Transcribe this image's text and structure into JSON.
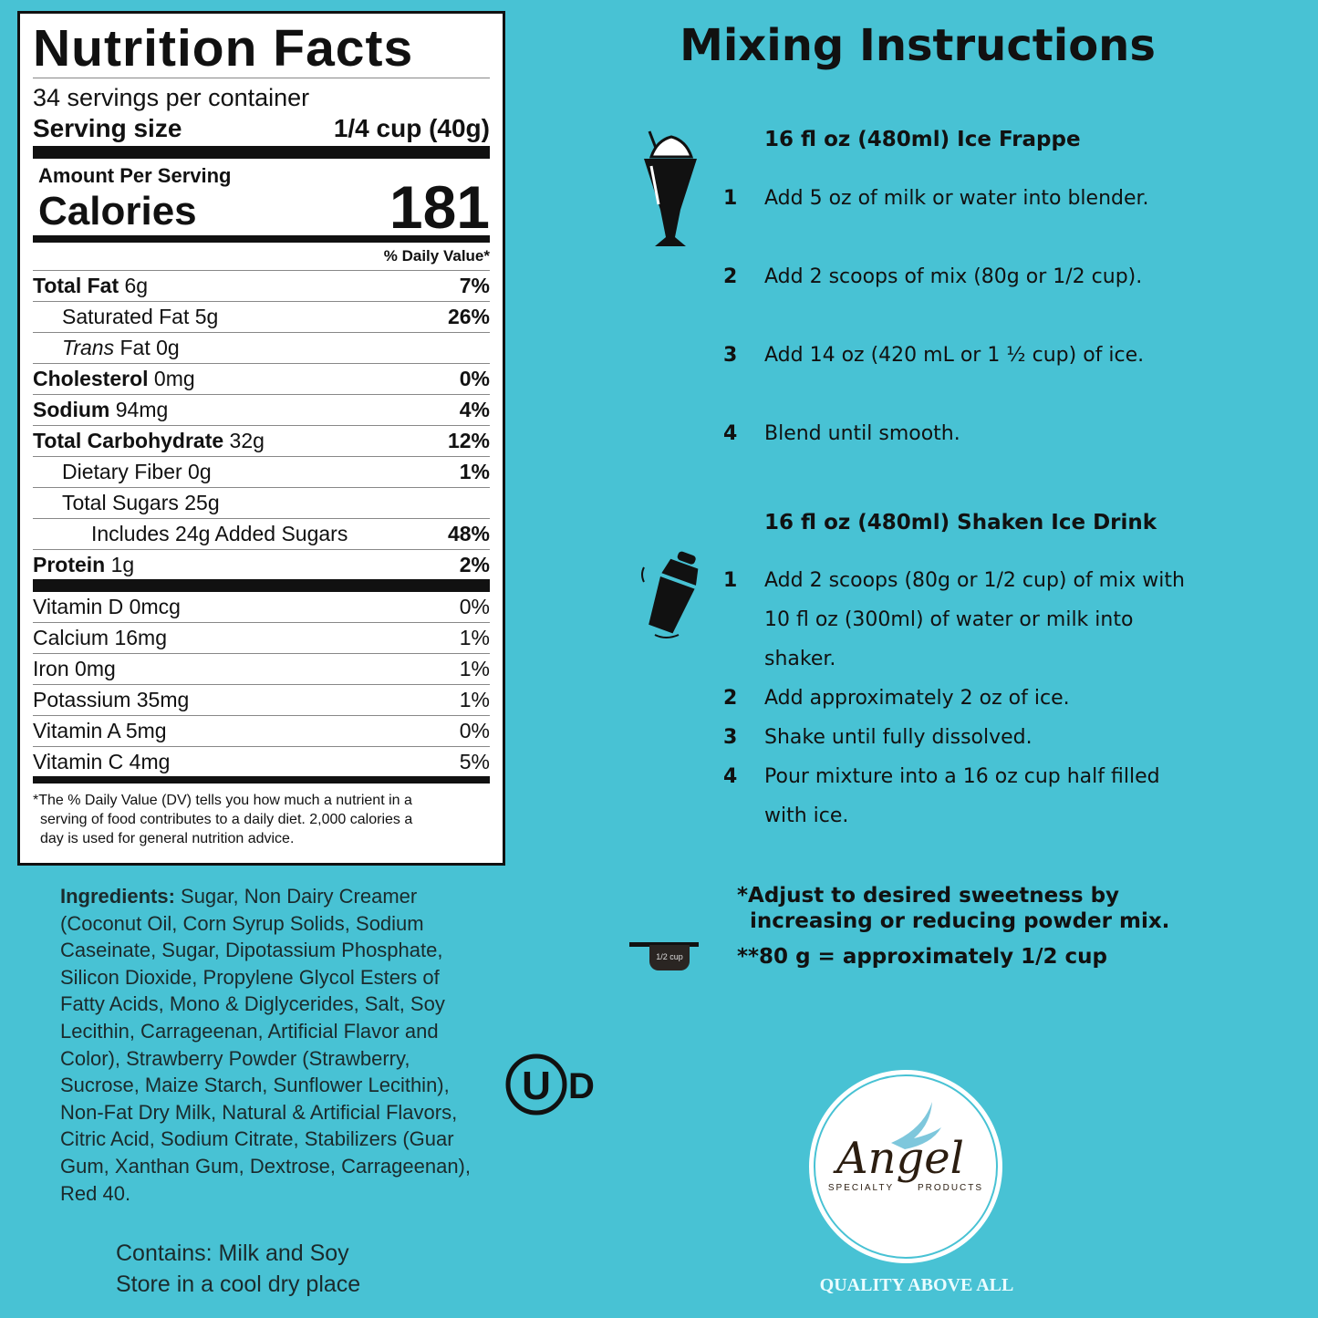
{
  "nutrition": {
    "title": "Nutrition Facts",
    "servings": "34 servings per container",
    "serving_size_label": "Serving size",
    "serving_size_value": "1/4 cup (40g)",
    "amount_per_serving": "Amount Per Serving",
    "calories_label": "Calories",
    "calories_value": "181",
    "daily_value_header": "% Daily Value*",
    "rows": [
      {
        "bold": "Total Fat",
        "label": " 6g",
        "dv": "7%",
        "indent": 0
      },
      {
        "bold": "",
        "label": "Saturated Fat 5g",
        "dv": "26%",
        "indent": 1
      },
      {
        "bold": "",
        "italic": "Trans",
        "label": " Fat 0g",
        "dv": "",
        "indent": 1
      },
      {
        "bold": "Cholesterol",
        "label": " 0mg",
        "dv": "0%",
        "indent": 0
      },
      {
        "bold": "Sodium",
        "label": " 94mg",
        "dv": "4%",
        "indent": 0
      },
      {
        "bold": "Total Carbohydrate",
        "label": " 32g",
        "dv": "12%",
        "indent": 0
      },
      {
        "bold": "",
        "label": "Dietary Fiber 0g",
        "dv": "1%",
        "indent": 1
      },
      {
        "bold": "",
        "label": "Total Sugars 25g",
        "dv": "",
        "indent": 1
      },
      {
        "bold": "",
        "label": "Includes 24g Added Sugars",
        "dv": "48%",
        "indent": 2
      },
      {
        "bold": "Protein",
        "label": " 1g",
        "dv": "2%",
        "indent": 0
      }
    ],
    "vitamins": [
      {
        "label": "Vitamin D 0mcg",
        "dv": "0%"
      },
      {
        "label": "Calcium 16mg",
        "dv": "1%"
      },
      {
        "label": "Iron 0mg",
        "dv": "1%"
      },
      {
        "label": "Potassium 35mg",
        "dv": "1%"
      },
      {
        "label": "Vitamin A 5mg",
        "dv": "0%"
      },
      {
        "label": "Vitamin C 4mg",
        "dv": "5%"
      }
    ],
    "footnote": [
      "*The % Daily Value (DV) tells you how much a nutrient in a",
      "serving of food contributes to a daily diet. 2,000 calories a",
      "day is used for general nutrition advice."
    ]
  },
  "ingredients": {
    "label": "Ingredients:",
    "text": " Sugar, Non Dairy Creamer (Coconut Oil, Corn Syrup Solids, Sodium Caseinate, Sugar, Dipotassium Phosphate, Silicon Dioxide, Propylene Glycol Esters of Fatty Acids, Mono & Diglycerides, Salt, Soy Lecithin, Carrageenan, Artificial Flavor and Color), Strawberry Powder (Strawberry, Sucrose, Maize Starch, Sunflower Lecithin), Non-Fat Dry Milk, Natural & Artificial Flavors, Citric Acid, Sodium Citrate, Stabilizers (Guar Gum, Xanthan Gum, Dextrose, Carrageenan), Red 40."
  },
  "contains": "Contains: Milk and Soy",
  "storage": "Store in a cool  dry place",
  "kosher_logo": "UD",
  "mixing": {
    "title": "Mixing Instructions",
    "frappe": {
      "heading": "16 fl oz (480ml) Ice Frappe",
      "icon": "milkshake-icon",
      "steps": [
        {
          "n": "1",
          "t": "Add 5 oz of milk or water into blender."
        },
        {
          "n": "2",
          "t": "Add 2 scoops of mix (80g or 1/2 cup)."
        },
        {
          "n": "3",
          "t": "Add 14 oz (420 mL or 1 ½ cup) of ice."
        },
        {
          "n": "4",
          "t": "Blend until smooth."
        }
      ]
    },
    "shaken": {
      "heading": "16 fl oz (480ml) Shaken Ice Drink",
      "icon": "shaker-icon",
      "steps": [
        {
          "n": "1",
          "t": "Add 2 scoops (80g or 1/2 cup) of mix with 10 fl oz (300ml) of water or milk into shaker."
        },
        {
          "n": "2",
          "t": "Add approximately 2 oz of ice."
        },
        {
          "n": "3",
          "t": "Shake until fully dissolved."
        },
        {
          "n": "4",
          "t": "Pour mixture into a 16 oz cup half filled with ice."
        }
      ]
    },
    "note1": "*Adjust to desired sweetness by",
    "note1b": "increasing or reducing powder mix.",
    "note2": "**80 g = approximately 1/2 cup",
    "cup_label": "1/2 cup"
  },
  "brand": {
    "logo": "Angel",
    "sub_left": "SPECIALTY",
    "sub_right": "PRODUCTS",
    "tagline": "QUALITY ABOVE ALL"
  },
  "colors": {
    "background": "#48c2d4",
    "text": "#111111"
  }
}
